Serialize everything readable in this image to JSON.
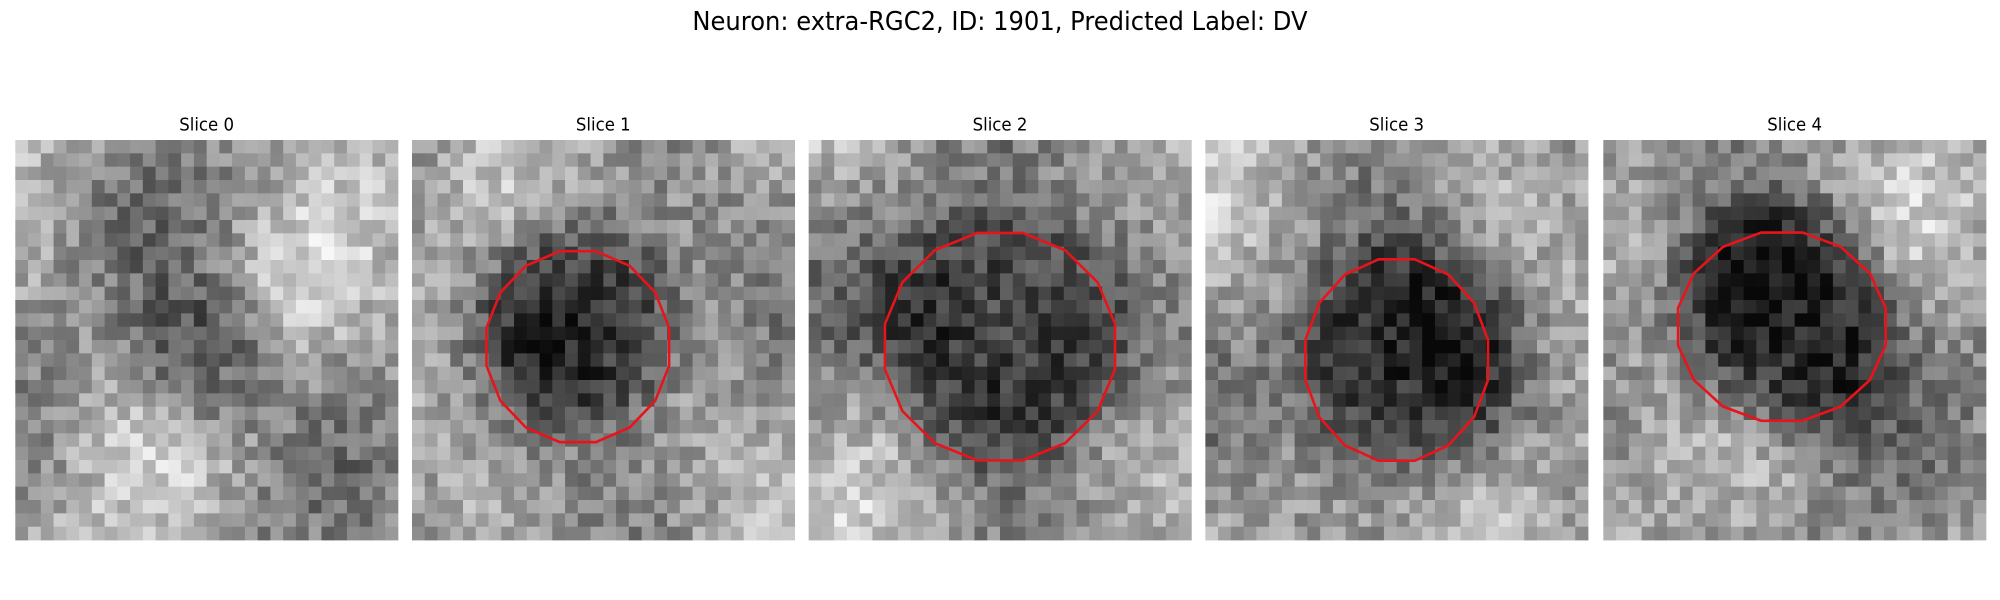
{
  "title": "Neuron: extra-RGC2, ID: 1901, Predicted Label: DV",
  "panels": [
    {
      "title": "Slice 0"
    },
    {
      "title": "Slice 1"
    },
    {
      "title": "Slice 2"
    },
    {
      "title": "Slice 3"
    },
    {
      "title": "Slice 4"
    }
  ]
}
